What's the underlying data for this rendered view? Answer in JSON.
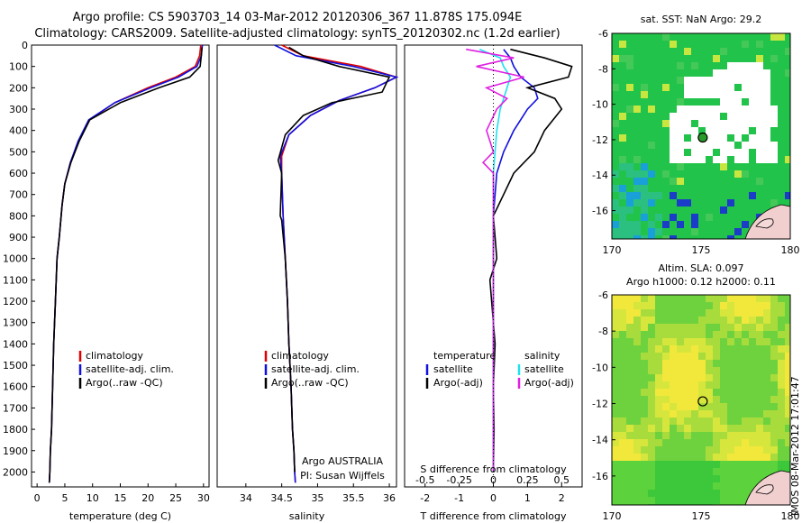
{
  "header": {
    "line1": "Argo profile: CS 5903703_14 03-Mar-2012 20120306_367 11.878S 175.094E",
    "line2": "Climatology: CARS2009. Satellite-adjusted climatology: synTS_20120302.nc (1.2d earlier)"
  },
  "stamp": "IMOS 08-Mar-2012 17:01:47",
  "colors": {
    "climatology": "#e00000",
    "satellite": "#1010e0",
    "argo": "#000000",
    "sal_satellite": "#20e0f0",
    "sal_argo": "#e020e0"
  },
  "chart_data": [
    {
      "type": "line",
      "name_id": "temperature-profile",
      "xlabel": "temperature (deg C)",
      "ylim": [
        2070,
        0
      ],
      "xlim": [
        -1,
        31
      ],
      "xticks": [
        0,
        5,
        10,
        15,
        20,
        25,
        30
      ],
      "yticks": [
        0,
        100,
        200,
        300,
        400,
        500,
        600,
        700,
        800,
        900,
        1000,
        1100,
        1200,
        1300,
        1400,
        1500,
        1600,
        1700,
        1800,
        1900,
        2000
      ],
      "legend": [
        "climatology",
        "satellite-adj. clim.",
        "Argo(..raw -QC)"
      ],
      "series": [
        {
          "name": "climatology",
          "color": "#e00000",
          "x": [
            29.5,
            29.3,
            28.5,
            25,
            20,
            14,
            9.5,
            7.5,
            6,
            5,
            4.5,
            4,
            3.6,
            3.3,
            3.0,
            2.8,
            2.6,
            2.4,
            2.3,
            2.2
          ],
          "y": [
            0,
            50,
            100,
            150,
            200,
            270,
            350,
            450,
            550,
            650,
            750,
            900,
            1000,
            1200,
            1400,
            1600,
            1800,
            1900,
            2000,
            2050
          ]
        },
        {
          "name": "satellite-adj. clim.",
          "color": "#1010e0",
          "x": [
            29.8,
            29.6,
            28.8,
            25.5,
            20.5,
            14,
            9.3,
            7.4,
            6,
            5,
            4.5,
            4,
            3.6,
            3.3,
            3.0,
            2.8,
            2.6,
            2.4,
            2.3,
            2.2
          ],
          "y": [
            0,
            50,
            100,
            150,
            200,
            270,
            350,
            450,
            550,
            650,
            750,
            900,
            1000,
            1200,
            1400,
            1600,
            1800,
            1900,
            2000,
            2050
          ]
        },
        {
          "name": "Argo(..raw -QC)",
          "color": "#000000",
          "x": [
            29.7,
            29.6,
            29.4,
            27.5,
            22,
            15,
            9.5,
            7.6,
            6.1,
            5,
            4.5,
            4,
            3.6,
            3.3,
            3.0,
            2.8,
            2.6,
            2.4,
            2.3,
            2.2
          ],
          "y": [
            10,
            50,
            100,
            150,
            200,
            270,
            350,
            450,
            550,
            650,
            750,
            900,
            1000,
            1200,
            1400,
            1600,
            1800,
            1900,
            2000,
            2050
          ]
        }
      ]
    },
    {
      "type": "line",
      "name_id": "salinity-profile",
      "xlabel": "salinity",
      "ylim": [
        2070,
        0
      ],
      "xlim": [
        33.6,
        36.1
      ],
      "xticks": [
        34,
        34.5,
        35,
        35.5,
        36
      ],
      "legend": [
        "climatology",
        "satellite-adj. clim.",
        "Argo(..raw -QC)"
      ],
      "annotation": [
        "Argo AUSTRALIA",
        "PI: Susan Wijffels"
      ],
      "series": [
        {
          "name": "climatology",
          "color": "#e00000",
          "x": [
            34.5,
            34.8,
            35.6,
            36.1,
            35.8,
            35.3,
            34.9,
            34.6,
            34.5,
            34.5,
            34.52,
            34.55,
            34.58,
            34.6,
            34.63,
            34.65,
            34.67,
            34.68,
            34.69
          ],
          "y": [
            0,
            50,
            100,
            150,
            200,
            260,
            330,
            420,
            520,
            600,
            800,
            1000,
            1200,
            1400,
            1600,
            1800,
            1900,
            2000,
            2050
          ]
        },
        {
          "name": "satellite-adj. clim.",
          "color": "#1010e0",
          "x": [
            34.4,
            34.7,
            35.5,
            36.1,
            35.8,
            35.3,
            34.9,
            34.6,
            34.48,
            34.5,
            34.52,
            34.55,
            34.58,
            34.6,
            34.63,
            34.65,
            34.67,
            34.68,
            34.69
          ],
          "y": [
            0,
            50,
            100,
            150,
            200,
            260,
            330,
            420,
            520,
            600,
            800,
            1000,
            1200,
            1400,
            1600,
            1800,
            1900,
            2000,
            2050
          ]
        },
        {
          "name": "Argo(..raw -QC)",
          "color": "#000000",
          "x": [
            34.6,
            34.8,
            35.3,
            36.0,
            35.9,
            35.2,
            34.8,
            34.55,
            34.45,
            34.5,
            34.48,
            34.5,
            34.55,
            34.58,
            34.6,
            34.63,
            34.65,
            34.67,
            34.68
          ],
          "y": [
            10,
            50,
            100,
            150,
            220,
            270,
            330,
            420,
            540,
            600,
            800,
            820,
            1000,
            1200,
            1400,
            1600,
            1800,
            1900,
            2000
          ]
        }
      ]
    },
    {
      "type": "line",
      "name_id": "difference-profile",
      "xlabel": "T difference from climatology",
      "x2label": "S difference from climatology",
      "ylim": [
        2070,
        0
      ],
      "xlim": [
        -2.6,
        2.6
      ],
      "xticks": [
        -2,
        -1,
        0,
        1,
        2
      ],
      "x2ticks": [
        "-0.5",
        "-0.25",
        "0",
        "0.25",
        "0.5"
      ],
      "legend_temperature": [
        "temperature",
        "satellite",
        "Argo(-adj)"
      ],
      "legend_salinity": [
        "salinity",
        "satellite",
        "Argo(-adj)"
      ],
      "series": [
        {
          "name": "satellite",
          "color": "#1010e0",
          "x": [
            0.3,
            0.5,
            0.6,
            0.8,
            1.2,
            1.3,
            1.0,
            0.6,
            0.3,
            0.1,
            0.05,
            0.0,
            0.0,
            0.0,
            0.0,
            0.0,
            0.0,
            0.0
          ],
          "y": [
            20,
            60,
            100,
            150,
            200,
            250,
            300,
            400,
            500,
            600,
            700,
            800,
            1000,
            1200,
            1400,
            1600,
            1800,
            2000
          ]
        },
        {
          "name": "Argo(-adj)",
          "color": "#000000",
          "x": [
            0.5,
            1.5,
            2.3,
            2.2,
            1.0,
            1.8,
            2.0,
            1.5,
            1.2,
            0.6,
            0.3,
            0.0,
            0.1,
            -0.1,
            0.05,
            0.0,
            0.02,
            0.0
          ],
          "y": [
            20,
            60,
            100,
            150,
            200,
            250,
            300,
            400,
            500,
            600,
            700,
            800,
            1000,
            1100,
            1400,
            1600,
            1800,
            2000
          ]
        },
        {
          "name": "salinity satellite",
          "color": "#20e0f0",
          "x": [
            -0.4,
            0.2,
            0.3,
            0.5,
            0.4,
            0.3,
            0.2,
            0.1,
            0.05,
            0.0,
            0.0,
            0.0,
            0.0,
            0.0,
            0.0,
            0.0,
            0.0,
            0.0
          ],
          "y": [
            20,
            60,
            100,
            150,
            200,
            250,
            300,
            400,
            500,
            600,
            700,
            800,
            1000,
            1200,
            1400,
            1600,
            1800,
            2000
          ]
        },
        {
          "name": "salinity Argo(-adj)",
          "color": "#e020e0",
          "x": [
            -0.8,
            0.6,
            -0.5,
            0.9,
            -0.2,
            0.4,
            0.1,
            -0.2,
            0.0,
            -0.3,
            0.0,
            0.0,
            0.0,
            0.0,
            0.0,
            0.0,
            0.0,
            0.0
          ],
          "y": [
            20,
            60,
            100,
            150,
            200,
            250,
            300,
            400,
            500,
            550,
            600,
            800,
            1000,
            1200,
            1400,
            1600,
            1800,
            2000
          ]
        }
      ]
    },
    {
      "type": "heatmap",
      "name_id": "sst-map",
      "title": "sat. SST: NaN Argo: 29.2",
      "xlim": [
        170,
        180
      ],
      "ylim": [
        -17.6,
        -6
      ],
      "xticks": [
        170,
        175,
        180
      ],
      "yticks": [
        -6,
        -8,
        -10,
        -12,
        -14,
        -16
      ],
      "argo_position": {
        "lon": 175.094,
        "lat": -11.878
      }
    },
    {
      "type": "heatmap",
      "name_id": "sla-map",
      "title1": "Altim. SLA: 0.097",
      "title2": "Argo h1000: 0.12 h2000: 0.11",
      "xlim": [
        170,
        180
      ],
      "ylim": [
        -17.6,
        -6
      ],
      "xticks": [
        170,
        175,
        180
      ],
      "yticks": [
        -6,
        -8,
        -10,
        -12,
        -14,
        -16
      ],
      "argo_position": {
        "lon": 175.094,
        "lat": -11.878
      }
    }
  ]
}
